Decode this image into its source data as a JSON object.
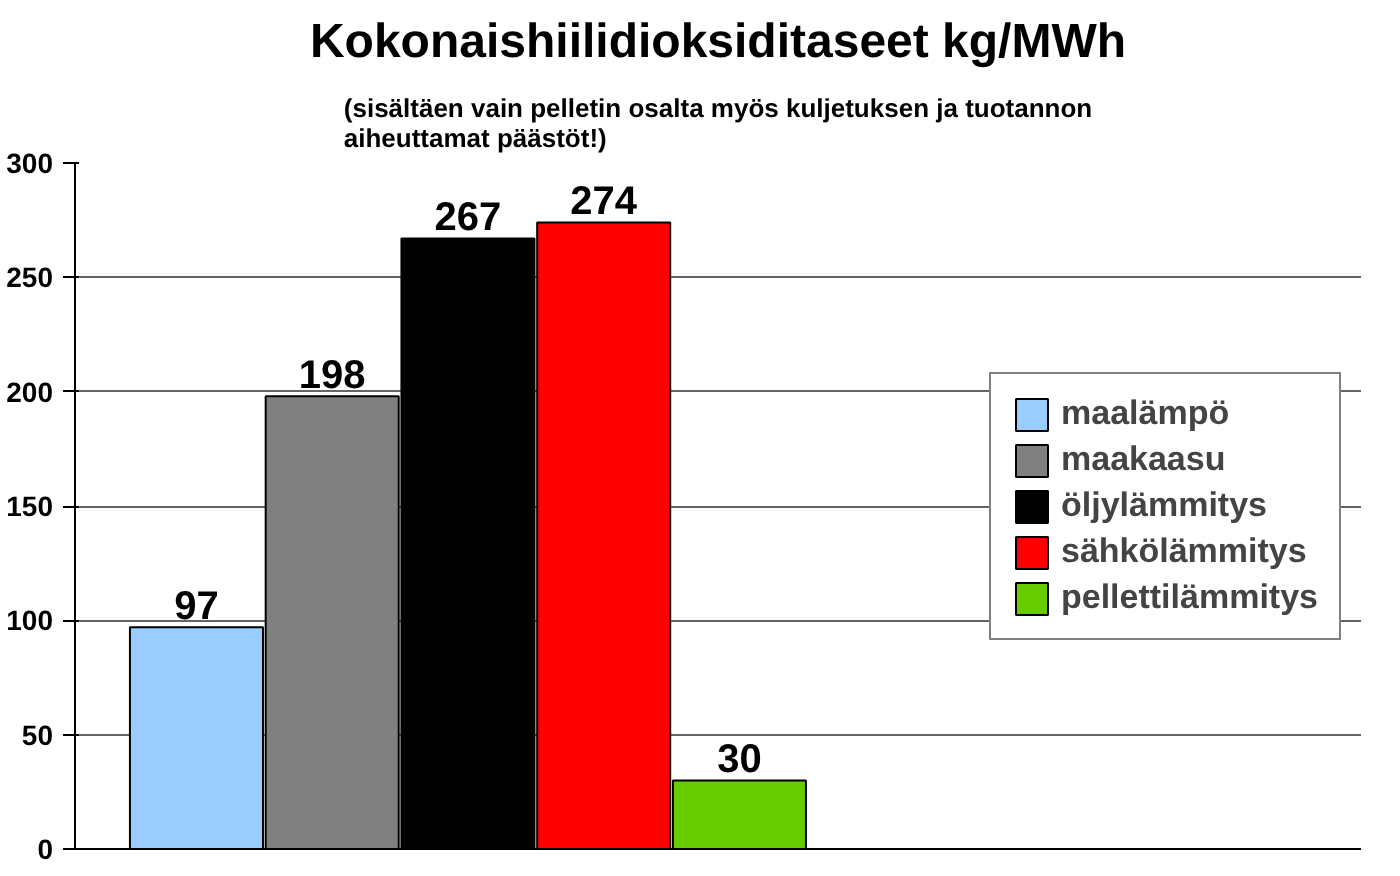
{
  "chart_data": {
    "type": "bar",
    "title": "Kokonaishiilidioksiditaseet kg/MWh",
    "subtitle": "(sisältäen vain pelletin osalta myös kuljetuksen ja tuotannon\naiheuttamat päästöt!)",
    "categories": [
      null
    ],
    "series": [
      {
        "name": "maalämpö",
        "color": "#99ccff",
        "values": [
          97
        ]
      },
      {
        "name": "maakaasu",
        "color": "#808080",
        "values": [
          198
        ]
      },
      {
        "name": "öljylämmitys",
        "color": "#000000",
        "values": [
          267
        ]
      },
      {
        "name": "sähkölämmitys",
        "color": "#ff0000",
        "values": [
          274
        ]
      },
      {
        "name": "pellettilämmitys",
        "color": "#66cc00",
        "values": [
          30
        ]
      }
    ],
    "ylim": [
      0,
      300
    ],
    "yticks": [
      0,
      50,
      100,
      150,
      200,
      250,
      300
    ],
    "grid": "y",
    "legend": "right",
    "tick_labels": "y",
    "data_labels": true
  }
}
